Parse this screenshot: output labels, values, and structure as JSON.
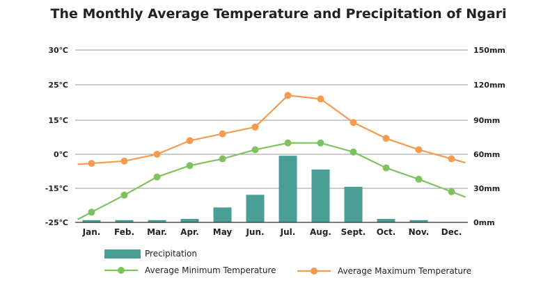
{
  "chart_data": {
    "type": "bar",
    "title": "The Monthly Average Temperature and Precipitation of Ngari",
    "categories": [
      "Jan.",
      "Feb.",
      "Mar.",
      "Apr.",
      "May",
      "Jun.",
      "Jul.",
      "Aug.",
      "Sept.",
      "Oct.",
      "Nov.",
      "Dec."
    ],
    "left_axis": {
      "ticks": [
        "30℃",
        "25℃",
        "15℃",
        "0℃",
        "-15℃",
        "-25℃"
      ]
    },
    "right_axis": {
      "ticks": [
        "150mm",
        "120mm",
        "90mm",
        "60mm",
        "30mm",
        "0mm"
      ],
      "ylim": [
        0,
        150
      ]
    },
    "grid": true,
    "legend_position": "bottom",
    "series": [
      {
        "name": "Precipitation",
        "type": "bar",
        "axis": "right",
        "color": "#4a9e96",
        "values": [
          2,
          2,
          2,
          3,
          13,
          24,
          58,
          46,
          31,
          3,
          2,
          0
        ]
      },
      {
        "name": "Average Minimum Temperature",
        "type": "line",
        "axis": "left",
        "color": "#7ec25e",
        "values": [
          -22,
          -17,
          -10,
          -5,
          -2,
          2,
          5,
          5,
          1,
          -6,
          -11,
          -16
        ]
      },
      {
        "name": "Average Maximum Temperature",
        "type": "line",
        "axis": "left",
        "color": "#f59a4e",
        "values": [
          -4,
          -3,
          0,
          6,
          9,
          12,
          22,
          21,
          14,
          7,
          2,
          -2
        ]
      }
    ]
  }
}
